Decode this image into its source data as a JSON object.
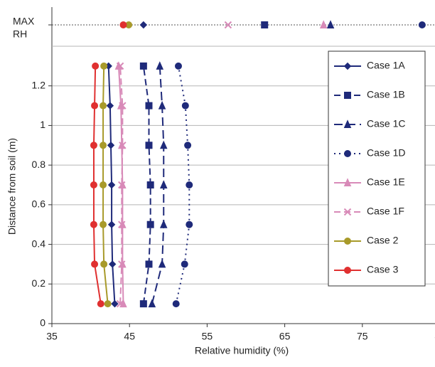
{
  "chart_data": {
    "type": "line",
    "x_label": "Relative humidity (%)",
    "y_label": "Distance from soil (m)",
    "max_label": [
      "MAX",
      "RH"
    ],
    "xlim": [
      35,
      85
    ],
    "xticks": [
      35,
      45,
      55,
      65,
      75,
      85
    ],
    "ylim": [
      0,
      1.4
    ],
    "yticks": [
      0,
      0.2,
      0.4,
      0.6,
      0.8,
      1,
      1.2
    ],
    "grid": true,
    "legend": "upper right",
    "y": [
      0.1,
      0.3,
      0.5,
      0.7,
      0.9,
      1.1,
      1.3
    ],
    "series": [
      {
        "name": "Case 1A",
        "color": "#1f2a7a",
        "marker": "diamond",
        "dash": "solid",
        "values": [
          43.1,
          42.8,
          42.7,
          42.7,
          42.6,
          42.5,
          42.3
        ],
        "max_rh": 46.8
      },
      {
        "name": "Case 1B",
        "color": "#1f2a7a",
        "marker": "square",
        "dash": "dashed",
        "values": [
          46.8,
          47.5,
          47.7,
          47.7,
          47.5,
          47.5,
          46.8
        ],
        "max_rh": 62.4
      },
      {
        "name": "Case 1C",
        "color": "#1f2a7a",
        "marker": "triangle",
        "dash": "longdash",
        "values": [
          47.9,
          49.2,
          49.4,
          49.4,
          49.4,
          49.2,
          48.9
        ],
        "max_rh": 70.9
      },
      {
        "name": "Case 1D",
        "color": "#1f2a7a",
        "marker": "circle",
        "dash": "dotted",
        "values": [
          51.0,
          52.1,
          52.7,
          52.7,
          52.5,
          52.2,
          51.3
        ],
        "max_rh": 82.7
      },
      {
        "name": "Case 1E",
        "color": "#d88ab8",
        "marker": "triangle",
        "dash": "solid",
        "values": [
          44.2,
          44.1,
          44.1,
          44.1,
          44.0,
          43.9,
          43.6
        ],
        "max_rh": 70.0
      },
      {
        "name": "Case 1F",
        "color": "#d88ab8",
        "marker": "x",
        "dash": "dashed",
        "values": [
          43.8,
          44.0,
          44.0,
          44.0,
          44.1,
          44.1,
          43.8
        ],
        "max_rh": 57.7
      },
      {
        "name": "Case 2",
        "color": "#a89a2a",
        "marker": "circle",
        "dash": "solid",
        "values": [
          42.2,
          41.7,
          41.6,
          41.6,
          41.6,
          41.6,
          41.7
        ],
        "max_rh": 44.9
      },
      {
        "name": "Case 3",
        "color": "#e03030",
        "marker": "circle",
        "dash": "solid",
        "values": [
          41.3,
          40.5,
          40.4,
          40.4,
          40.4,
          40.5,
          40.6
        ],
        "max_rh": 44.2
      }
    ]
  }
}
